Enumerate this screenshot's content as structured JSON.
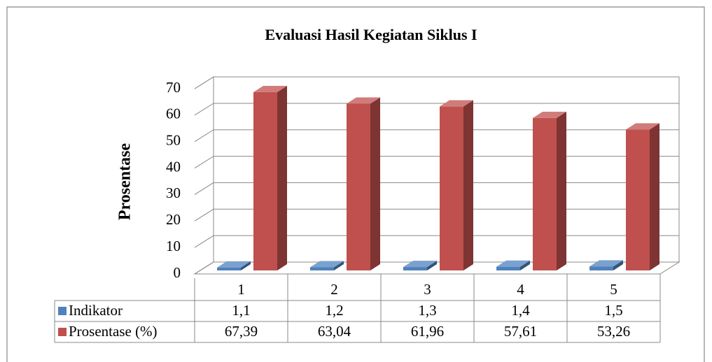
{
  "chart_data": {
    "type": "bar3d",
    "title": "Evaluasi Hasil Kegiatan Siklus I",
    "y_label": "Prosentase",
    "categories": [
      "1",
      "2",
      "3",
      "4",
      "5"
    ],
    "series": [
      {
        "name": "Indikator",
        "color": "#4f81bd",
        "values": [
          1.1,
          1.2,
          1.3,
          1.4,
          1.5
        ],
        "value_labels": [
          "1,1",
          "1,2",
          "1,3",
          "1,4",
          "1,5"
        ]
      },
      {
        "name": "Prosentase (%)",
        "color": "#c0504d",
        "values": [
          67.39,
          63.04,
          61.96,
          57.61,
          53.26
        ],
        "value_labels": [
          "67,39",
          "63,04",
          "61,96",
          "57,61",
          "53,26"
        ]
      }
    ],
    "ylim": [
      0,
      70
    ],
    "yticks": [
      0,
      10,
      20,
      30,
      40,
      50,
      60,
      70
    ],
    "grid": true,
    "data_table": true
  }
}
